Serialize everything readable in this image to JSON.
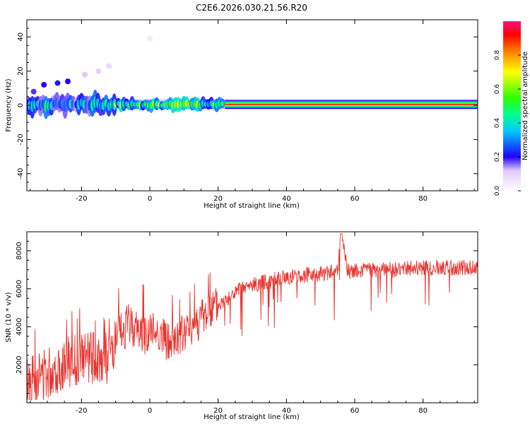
{
  "chart_data": [
    {
      "type": "heatmap",
      "title": "C2E6.2026.030.21.56.R20",
      "xlabel": "Height of straight line (km)",
      "ylabel": "Frequency (Hz)",
      "xlim": [
        -36,
        96
      ],
      "ylim": [
        -50,
        50
      ],
      "xticks": [
        -20,
        0,
        20,
        40,
        60,
        80
      ],
      "yticks": [
        -40,
        -20,
        0,
        20,
        40
      ],
      "colorbar": {
        "label": "Normalized spectral amplitude",
        "range": [
          0,
          1
        ],
        "ticks": [
          "0.0",
          "0.2",
          "0.4",
          "0.6",
          "0.8"
        ],
        "tick_values": [
          0.0,
          0.2,
          0.4,
          0.6,
          0.8
        ]
      },
      "band": {
        "center_freq_hz": 0.5,
        "outer_half_width_hz": 3,
        "segments": [
          {
            "x0": -36,
            "x1": -10,
            "amp": 0.35,
            "noisy": true
          },
          {
            "x0": -10,
            "x1": 22,
            "amp": 0.55,
            "noisy": true
          },
          {
            "x0": 22,
            "x1": 96,
            "amp": 0.95,
            "noisy": false
          }
        ]
      },
      "scatter_blobs": [
        {
          "x": -34,
          "y": 8,
          "amp": 0.18
        },
        {
          "x": -31,
          "y": 12,
          "amp": 0.2
        },
        {
          "x": -27,
          "y": 13,
          "amp": 0.22
        },
        {
          "x": -24,
          "y": 14,
          "amp": 0.2
        },
        {
          "x": -19,
          "y": 18,
          "amp": 0.12
        },
        {
          "x": -15,
          "y": 20,
          "amp": 0.1
        },
        {
          "x": -12,
          "y": 23,
          "amp": 0.08
        },
        {
          "x": 0,
          "y": 39,
          "amp": 0.05
        }
      ]
    },
    {
      "type": "line",
      "title": "",
      "xlabel": "Height of straight line (km)",
      "ylabel": "SNR (10 * v/v)",
      "xlim": [
        -36,
        96
      ],
      "ylim": [
        0,
        9000
      ],
      "xticks": [
        -20,
        0,
        20,
        40,
        60,
        80
      ],
      "yticks": [
        2000,
        4000,
        6000,
        8000
      ],
      "color": "#e8332e",
      "series": [
        {
          "name": "SNR",
          "x": [
            -36,
            -30,
            -24,
            -18,
            -12,
            -9,
            -6,
            -2,
            2,
            6,
            8,
            10,
            14,
            20,
            26,
            32,
            40,
            50,
            55,
            56,
            58,
            64,
            72,
            80,
            88,
            96
          ],
          "y": [
            1200,
            1600,
            2100,
            2400,
            2300,
            3500,
            4200,
            3600,
            3800,
            3100,
            3300,
            3600,
            4300,
            5100,
            5900,
            6300,
            6600,
            6800,
            6900,
            8800,
            6900,
            7000,
            7000,
            7100,
            7100,
            7100
          ]
        }
      ]
    }
  ]
}
